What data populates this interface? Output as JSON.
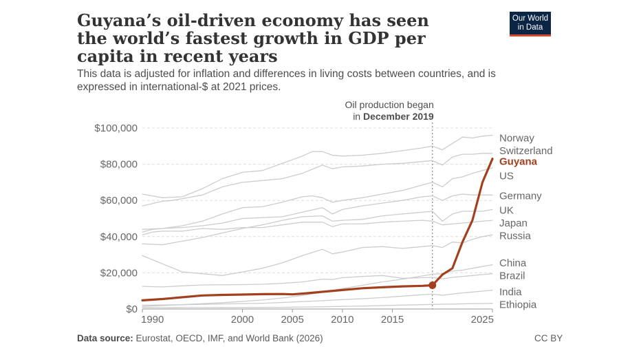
{
  "header": {
    "title": "Guyana’s oil-driven economy has seen the world’s fastest growth in GDP per capita in recent years",
    "subtitle": "This data is adjusted for inflation and differences in living costs between countries, and is expressed in international-$ at 2021 prices.",
    "logo_line1": "Our World",
    "logo_line2": "in Data"
  },
  "footer": {
    "source_label": "Data source:",
    "source_text": "Eurostat, OECD, IMF, and World Bank (2026)",
    "license": "CC BY"
  },
  "colors": {
    "highlight": "#a2401e",
    "grey_line": "#cccccc",
    "grid": "#dddddd",
    "annotation_line": "#888888"
  },
  "chart_data": {
    "type": "line",
    "x_range": [
      1990,
      2025
    ],
    "x_ticks": [
      1990,
      2000,
      2005,
      2010,
      2015,
      2025
    ],
    "x_tick_labels": [
      "1990",
      "2000",
      "2005",
      "2010",
      "2015",
      "2025"
    ],
    "y_range": [
      0,
      100000
    ],
    "y_ticks": [
      0,
      20000,
      40000,
      60000,
      80000,
      100000
    ],
    "y_tick_labels": [
      "$0",
      "$20,000",
      "$40,000",
      "$60,000",
      "$80,000",
      "$100,000"
    ],
    "grid": "horizontal dashed",
    "annotation": {
      "x": 2019,
      "line1": "Oil production began",
      "line2_prefix": "in ",
      "line2_bold": "December 2019"
    },
    "highlight_series": "Guyana",
    "highlight_point": {
      "x": 2019,
      "y": 13100
    },
    "series": [
      {
        "name": "Norway",
        "x": [
          1990,
          1992,
          1994,
          1996,
          1998,
          2000,
          2002,
          2004,
          2006,
          2007,
          2008,
          2009,
          2010,
          2012,
          2014,
          2016,
          2018,
          2019,
          2020,
          2021,
          2022,
          2023,
          2024,
          2025
        ],
        "y": [
          63500,
          61500,
          62000,
          66500,
          72000,
          75500,
          76500,
          80500,
          84500,
          87000,
          87000,
          85000,
          84500,
          85000,
          86000,
          87500,
          89000,
          90000,
          88000,
          91500,
          95000,
          94500,
          95500,
          96000
        ],
        "label_y": 94500
      },
      {
        "name": "Switzerland",
        "x": [
          1990,
          1992,
          1993,
          1994,
          1996,
          1998,
          2000,
          2002,
          2004,
          2006,
          2008,
          2009,
          2010,
          2012,
          2014,
          2016,
          2018,
          2019,
          2020,
          2021,
          2022,
          2023,
          2024,
          2025
        ],
        "y": [
          57000,
          59500,
          60000,
          61000,
          63000,
          67500,
          70000,
          71000,
          72000,
          75000,
          79500,
          77500,
          78500,
          79000,
          80000,
          80500,
          81500,
          82000,
          79500,
          84000,
          85500,
          85500,
          86000,
          86000
        ],
        "label_y": 87500
      },
      {
        "name": "US",
        "x": [
          1990,
          1992,
          1994,
          1996,
          1998,
          2000,
          2002,
          2004,
          2006,
          2007,
          2008,
          2009,
          2010,
          2012,
          2014,
          2016,
          2018,
          2019,
          2020,
          2021,
          2022,
          2023,
          2024,
          2025
        ],
        "y": [
          44000,
          44500,
          46000,
          48500,
          52500,
          56000,
          56500,
          59000,
          62000,
          62500,
          61500,
          59000,
          60000,
          61500,
          63500,
          65500,
          68500,
          70000,
          67500,
          72000,
          73000,
          75000,
          76500,
          78000
        ],
        "label_y": 73500
      },
      {
        "name": "Germany",
        "x": [
          1990,
          1991,
          1992,
          1994,
          1996,
          1998,
          2000,
          2002,
          2004,
          2006,
          2008,
          2009,
          2010,
          2012,
          2014,
          2016,
          2018,
          2019,
          2020,
          2021,
          2022,
          2023,
          2024,
          2025
        ],
        "y": [
          42500,
          44000,
          44500,
          45000,
          46000,
          47500,
          50000,
          50500,
          51000,
          53500,
          56000,
          52500,
          55000,
          57000,
          58500,
          60000,
          62000,
          62500,
          60000,
          62500,
          63500,
          63000,
          63000,
          63000
        ],
        "label_y": 62500
      },
      {
        "name": "UK",
        "x": [
          1990,
          1992,
          1994,
          1996,
          1998,
          2000,
          2002,
          2004,
          2006,
          2008,
          2009,
          2010,
          2012,
          2014,
          2016,
          2018,
          2019,
          2020,
          2021,
          2022,
          2023,
          2024,
          2025
        ],
        "y": [
          36000,
          35500,
          37500,
          39500,
          42000,
          44500,
          46500,
          49000,
          51000,
          51500,
          48500,
          49000,
          49500,
          51500,
          52500,
          53500,
          54000,
          48500,
          52500,
          54000,
          54000,
          54000,
          55000
        ],
        "label_y": 54500
      },
      {
        "name": "Japan",
        "x": [
          1990,
          1991,
          1992,
          1994,
          1996,
          1998,
          2000,
          2002,
          2004,
          2006,
          2008,
          2009,
          2010,
          2012,
          2014,
          2016,
          2018,
          2019,
          2020,
          2021,
          2022,
          2023,
          2024,
          2025
        ],
        "y": [
          41000,
          42500,
          43000,
          43000,
          44500,
          44000,
          45000,
          45000,
          46500,
          48000,
          48000,
          45500,
          47000,
          47000,
          48000,
          48500,
          49000,
          48500,
          46500,
          47000,
          47500,
          48000,
          48500,
          49000
        ],
        "label_y": 47500
      },
      {
        "name": "Russia",
        "x": [
          1990,
          1992,
          1994,
          1996,
          1998,
          2000,
          2002,
          2004,
          2006,
          2008,
          2009,
          2010,
          2012,
          2014,
          2016,
          2018,
          2019,
          2020,
          2021,
          2022,
          2023,
          2024,
          2025
        ],
        "y": [
          29500,
          25000,
          20500,
          19500,
          18500,
          20500,
          22500,
          25500,
          29500,
          33000,
          30500,
          31500,
          34000,
          34500,
          33500,
          34500,
          35000,
          34000,
          37000,
          36500,
          38500,
          40000,
          41000
        ],
        "label_y": 40500
      },
      {
        "name": "China",
        "x": [
          1990,
          1992,
          1994,
          1996,
          1998,
          2000,
          2002,
          2004,
          2006,
          2008,
          2010,
          2012,
          2014,
          2016,
          2018,
          2019,
          2020,
          2021,
          2022,
          2023,
          2024,
          2025
        ],
        "y": [
          1500,
          1900,
          2400,
          3000,
          3500,
          4200,
          5000,
          6100,
          7500,
          9200,
          11300,
          13100,
          15000,
          16500,
          18300,
          19200,
          19500,
          21000,
          21500,
          22500,
          23500,
          24500
        ],
        "label_y": 25500
      },
      {
        "name": "Brazil",
        "x": [
          1990,
          1992,
          1994,
          1996,
          1998,
          2000,
          2002,
          2004,
          2006,
          2008,
          2009,
          2010,
          2012,
          2014,
          2016,
          2018,
          2019,
          2020,
          2021,
          2022,
          2023,
          2024,
          2025
        ],
        "y": [
          12500,
          12200,
          12800,
          13300,
          13400,
          13500,
          13700,
          14200,
          15000,
          16500,
          16300,
          17300,
          18000,
          18500,
          17000,
          17300,
          17500,
          16700,
          17500,
          18000,
          18500,
          19000,
          19500
        ],
        "label_y": 18500
      },
      {
        "name": "India",
        "x": [
          1990,
          1992,
          1994,
          1996,
          1998,
          2000,
          2002,
          2004,
          2006,
          2008,
          2010,
          2012,
          2014,
          2016,
          2018,
          2019,
          2020,
          2021,
          2022,
          2023,
          2024,
          2025
        ],
        "y": [
          2100,
          2200,
          2400,
          2600,
          2800,
          3000,
          3200,
          3600,
          4100,
          4600,
          5200,
          5700,
          6300,
          7100,
          7900,
          8200,
          7600,
          8300,
          8900,
          9400,
          9900,
          10400
        ],
        "label_y": 9500
      },
      {
        "name": "Ethiopia",
        "x": [
          1990,
          1992,
          1994,
          1996,
          1998,
          2000,
          2002,
          2004,
          2006,
          2008,
          2010,
          2012,
          2014,
          2016,
          2018,
          2019,
          2020,
          2021,
          2022,
          2023,
          2024,
          2025
        ],
        "y": [
          850,
          750,
          780,
          800,
          820,
          850,
          870,
          950,
          1100,
          1250,
          1450,
          1650,
          1900,
          2150,
          2400,
          2550,
          2650,
          2750,
          2850,
          2950,
          3050,
          3150
        ],
        "label_y": 2500
      },
      {
        "name": "Guyana",
        "x": [
          1990,
          1992,
          1994,
          1996,
          1998,
          2000,
          2002,
          2004,
          2005,
          2006,
          2008,
          2010,
          2012,
          2014,
          2016,
          2018,
          2019,
          2020,
          2021,
          2022,
          2023,
          2024,
          2025
        ],
        "y": [
          4800,
          5500,
          6500,
          7500,
          7800,
          8000,
          8200,
          8300,
          8100,
          8500,
          9500,
          10500,
          11500,
          12000,
          12500,
          12800,
          13100,
          19000,
          22500,
          37000,
          49000,
          70000,
          83000
        ],
        "label_y": 81500
      }
    ]
  }
}
